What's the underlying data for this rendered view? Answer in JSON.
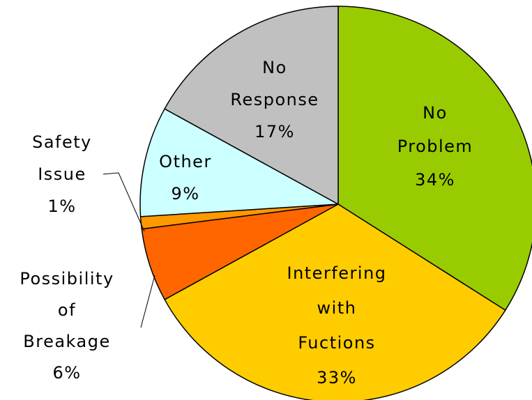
{
  "chart_data": {
    "type": "pie",
    "title": "",
    "slices": [
      {
        "lines": [
          "No",
          "Problem",
          "34%"
        ],
        "value": 34,
        "color": "#99cc00"
      },
      {
        "lines": [
          "Interfering",
          "with",
          "Fuctions",
          "33%"
        ],
        "value": 33,
        "color": "#ffcc00"
      },
      {
        "lines": [
          "Possibility",
          "of",
          "Breakage",
          "6%"
        ],
        "value": 6,
        "color": "#ff6600"
      },
      {
        "lines": [
          "Safety",
          "Issue",
          "1%"
        ],
        "value": 1,
        "color": "#ff9900"
      },
      {
        "lines": [
          "Other",
          "9%"
        ],
        "value": 9,
        "color": "#ccffff"
      },
      {
        "lines": [
          "No",
          "Response",
          "17%"
        ],
        "value": 17,
        "color": "#c0c0c0"
      }
    ]
  }
}
